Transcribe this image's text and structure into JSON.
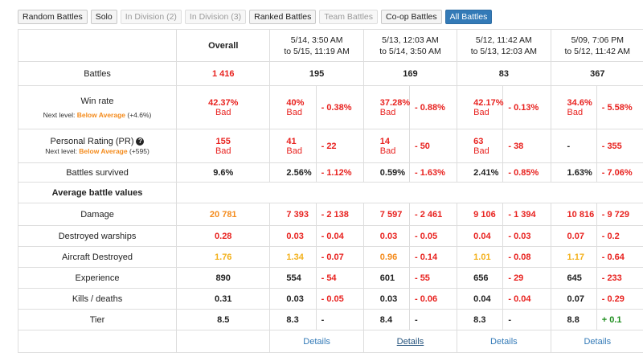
{
  "tabs": [
    {
      "label": "Random Battles",
      "state": "normal"
    },
    {
      "label": "Solo",
      "state": "normal"
    },
    {
      "label": "In Division (2)",
      "state": "disabled"
    },
    {
      "label": "In Division (3)",
      "state": "disabled"
    },
    {
      "label": "Ranked Battles",
      "state": "normal"
    },
    {
      "label": "Team Battles",
      "state": "disabled"
    },
    {
      "label": "Co-op Battles",
      "state": "normal"
    },
    {
      "label": "All Battles",
      "state": "active"
    }
  ],
  "header": {
    "overall": "Overall",
    "periods": [
      {
        "line1": "5/14, 3:50 AM",
        "line2": "to 5/15, 11:19 AM"
      },
      {
        "line1": "5/13, 12:03 AM",
        "line2": "to 5/14, 3:50 AM"
      },
      {
        "line1": "5/12, 11:42 AM",
        "line2": "to 5/13, 12:03 AM"
      },
      {
        "line1": "5/09, 7:06 PM",
        "line2": "to 5/12, 11:42 AM"
      }
    ]
  },
  "rows": {
    "battles": {
      "label": "Battles",
      "overall": "1 416",
      "periods": [
        "195",
        "169",
        "83",
        "367"
      ]
    },
    "winrate": {
      "label": "Win rate",
      "overall": "42.37%",
      "overall_grade": "Bad",
      "next_prefix": "Next level: ",
      "next_level": "Below Average",
      "next_delta": " (+4.6%)",
      "periods": [
        {
          "value": "40%",
          "grade": "Bad",
          "diff": "- 0.38%"
        },
        {
          "value": "37.28%",
          "grade": "Bad",
          "diff": "- 0.88%"
        },
        {
          "value": "42.17%",
          "grade": "Bad",
          "diff": "- 0.13%"
        },
        {
          "value": "34.6%",
          "grade": "Bad",
          "diff": "- 5.58%"
        }
      ]
    },
    "pr": {
      "label": "Personal Rating (PR)",
      "help_icon": "?",
      "overall": "155",
      "overall_grade": "Bad",
      "next_prefix": "Next level: ",
      "next_level": "Below Average",
      "next_delta": " (+595)",
      "periods": [
        {
          "value": "41",
          "grade": "Bad",
          "diff": "- 22"
        },
        {
          "value": "14",
          "grade": "Bad",
          "diff": "- 50"
        },
        {
          "value": "63",
          "grade": "Bad",
          "diff": "- 38"
        },
        {
          "value": "-",
          "grade": "",
          "diff": "- 355"
        }
      ]
    },
    "survived": {
      "label": "Battles survived",
      "overall": "9.6%",
      "periods": [
        {
          "value": "2.56%",
          "diff": "- 1.12%"
        },
        {
          "value": "0.59%",
          "diff": "- 1.63%"
        },
        {
          "value": "2.41%",
          "diff": "- 0.85%"
        },
        {
          "value": "1.63%",
          "diff": "- 7.06%"
        }
      ]
    }
  },
  "section_title": "Average battle values",
  "avg_rows": [
    {
      "label": "Damage",
      "overall": "20 781",
      "overall_color": "orange",
      "periods": [
        {
          "value": "7 393",
          "color": "red",
          "diff": "- 2 138",
          "diff_color": "red"
        },
        {
          "value": "7 597",
          "color": "red",
          "diff": "- 2 461",
          "diff_color": "red"
        },
        {
          "value": "9 106",
          "color": "red",
          "diff": "- 1 394",
          "diff_color": "red"
        },
        {
          "value": "10 816",
          "color": "red",
          "diff": "- 9 729",
          "diff_color": "red"
        }
      ]
    },
    {
      "label": "Destroyed warships",
      "overall": "0.28",
      "overall_color": "red",
      "periods": [
        {
          "value": "0.03",
          "color": "red",
          "diff": "- 0.04",
          "diff_color": "red"
        },
        {
          "value": "0.03",
          "color": "red",
          "diff": "- 0.05",
          "diff_color": "red"
        },
        {
          "value": "0.04",
          "color": "red",
          "diff": "- 0.03",
          "diff_color": "red"
        },
        {
          "value": "0.07",
          "color": "red",
          "diff": "- 0.2",
          "diff_color": "red"
        }
      ]
    },
    {
      "label": "Aircraft Destroyed",
      "overall": "1.76",
      "overall_color": "yellow",
      "periods": [
        {
          "value": "1.34",
          "color": "yellow",
          "diff": "- 0.07",
          "diff_color": "red"
        },
        {
          "value": "0.96",
          "color": "orange",
          "diff": "- 0.14",
          "diff_color": "red"
        },
        {
          "value": "1.01",
          "color": "yellow",
          "diff": "- 0.08",
          "diff_color": "red"
        },
        {
          "value": "1.17",
          "color": "yellow",
          "diff": "- 0.64",
          "diff_color": "red"
        }
      ]
    },
    {
      "label": "Experience",
      "overall": "890",
      "overall_color": "dark",
      "periods": [
        {
          "value": "554",
          "color": "dark",
          "diff": "- 54",
          "diff_color": "red"
        },
        {
          "value": "601",
          "color": "dark",
          "diff": "- 55",
          "diff_color": "red"
        },
        {
          "value": "656",
          "color": "dark",
          "diff": "- 29",
          "diff_color": "red"
        },
        {
          "value": "645",
          "color": "dark",
          "diff": "- 233",
          "diff_color": "red"
        }
      ]
    },
    {
      "label": "Kills / deaths",
      "overall": "0.31",
      "overall_color": "dark",
      "periods": [
        {
          "value": "0.03",
          "color": "dark",
          "diff": "- 0.05",
          "diff_color": "red"
        },
        {
          "value": "0.03",
          "color": "dark",
          "diff": "- 0.06",
          "diff_color": "red"
        },
        {
          "value": "0.04",
          "color": "dark",
          "diff": "- 0.04",
          "diff_color": "red"
        },
        {
          "value": "0.07",
          "color": "dark",
          "diff": "- 0.29",
          "diff_color": "red"
        }
      ]
    },
    {
      "label": "Tier",
      "overall": "8.5",
      "overall_color": "dark",
      "periods": [
        {
          "value": "8.3",
          "color": "dark",
          "diff": "-",
          "diff_color": "dark"
        },
        {
          "value": "8.4",
          "color": "dark",
          "diff": "-",
          "diff_color": "dark"
        },
        {
          "value": "8.3",
          "color": "dark",
          "diff": "-",
          "diff_color": "dark"
        },
        {
          "value": "8.8",
          "color": "dark",
          "diff": "+ 0.1",
          "diff_color": "green"
        }
      ]
    }
  ],
  "details_label": "Details",
  "colors": {
    "accent": "#337ab7",
    "bad": "#e8221f",
    "average": "#f48b1c",
    "good": "#1e8e1e"
  }
}
